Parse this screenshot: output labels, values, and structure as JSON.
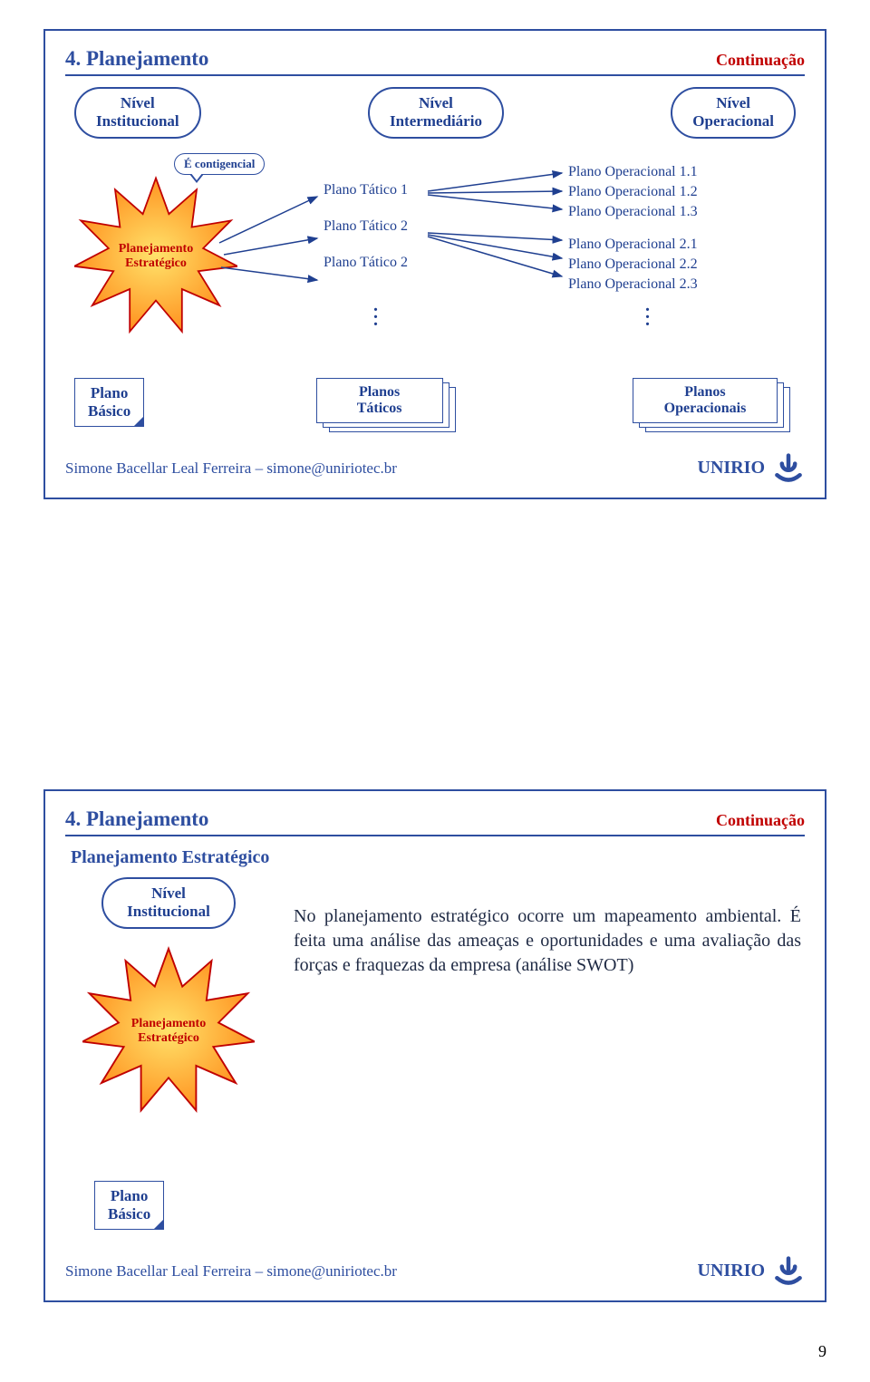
{
  "colors": {
    "slide_border": "#2e4ea0",
    "title_color": "#2e4ea0",
    "cont_color": "#c00000",
    "rule_color": "#2e4ea0",
    "oval_border": "#2e4ea0",
    "oval_text": "#1f3f90",
    "callout_border": "#2e4ea0",
    "callout_text": "#1f3f90",
    "star_stroke": "#c00000",
    "star_fill1": "#ffe36b",
    "star_fill2": "#ff8c1a",
    "star_text": "#c00000",
    "tat_text": "#1f3f90",
    "op_text": "#1f3f90",
    "note_border": "#2e4ea0",
    "note_text": "#1f3f90",
    "stack_border": "#2e4ea0",
    "stack_text": "#1f3f90",
    "footer_text": "#2e4ea0",
    "logo_text": "#2e4ea0",
    "arrow": "#1f3f90",
    "body_text": "#1f2a44"
  },
  "slide1": {
    "title": "4. Planejamento",
    "cont": "Continuação",
    "levels": {
      "inst": "Nível\nInstitucional",
      "inter": "Nível\nIntermediário",
      "oper": "Nível\nOperacional"
    },
    "callout": "É contigencial",
    "star_label": "Planejamento\nEstratégico",
    "taticos": [
      "Plano Tático 1",
      "Plano Tático 2",
      "Plano Tático 2"
    ],
    "operacionais": [
      "Plano Operacional 1.1",
      "Plano Operacional 1.2",
      "Plano Operacional 1.3",
      "Plano Operacional 2.1",
      "Plano Operacional 2.2",
      "Plano Operacional 2.3"
    ],
    "basic_box": "Plano\nBásico",
    "stack_taticos": "Planos\nTáticos",
    "stack_oper": "Planos\nOperacionais"
  },
  "slide2": {
    "title": "4. Planejamento",
    "cont": "Continuação",
    "subhead": "Planejamento Estratégico",
    "level_oval": "Nível\nInstitucional",
    "star_label": "Planejamento\nEstratégico",
    "body_text": "No planejamento estratégico ocorre um mapeamento ambiental. É feita uma análise das ameaças e oportunidades e uma avaliação das forças e fraquezas da empresa (análise SWOT)",
    "basic_box": "Plano\nBásico"
  },
  "footer": {
    "author": "Simone Bacellar Leal Ferreira – simone@uniriotec.br",
    "org": "UNIRIO"
  },
  "page_number": "9"
}
